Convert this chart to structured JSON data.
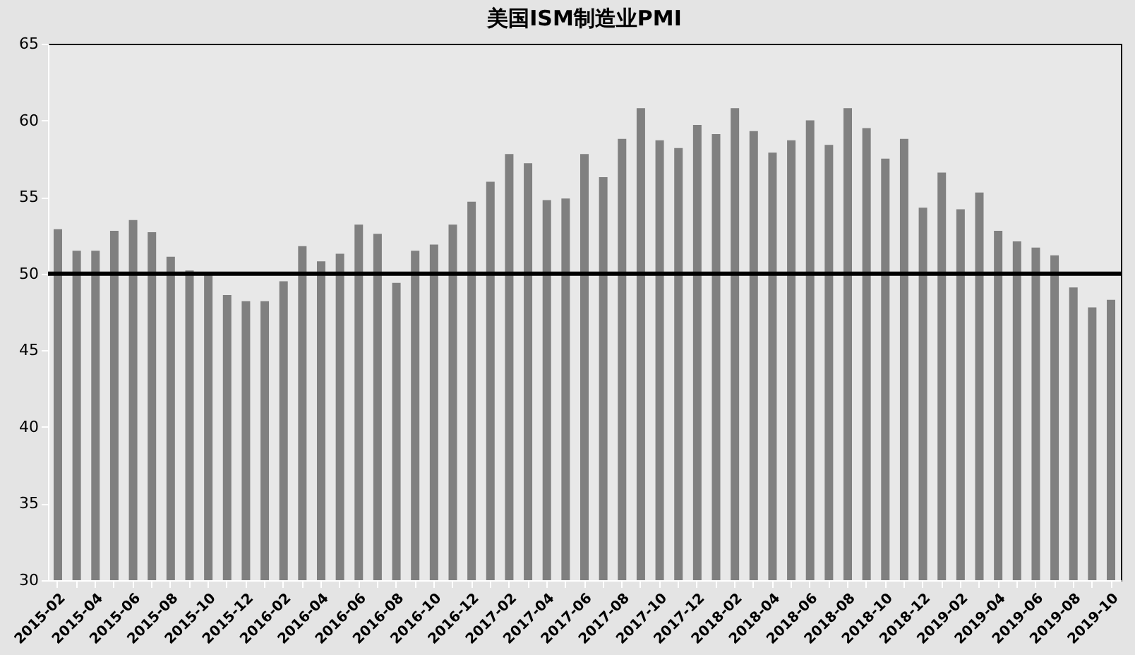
{
  "chart_data": {
    "type": "bar",
    "title": "美国ISM制造业PMI",
    "categories": [
      "2015-02",
      null,
      "2015-04",
      null,
      "2015-06",
      null,
      "2015-08",
      null,
      "2015-10",
      null,
      "2015-12",
      null,
      "2016-02",
      null,
      "2016-04",
      null,
      "2016-06",
      null,
      "2016-08",
      null,
      "2016-10",
      null,
      "2016-12",
      null,
      "2017-02",
      null,
      "2017-04",
      null,
      "2017-06",
      null,
      "2017-08",
      null,
      "2017-10",
      null,
      "2017-12",
      null,
      "2018-02",
      null,
      "2018-04",
      null,
      "2018-06",
      null,
      "2018-08",
      null,
      "2018-10",
      null,
      "2018-12",
      null,
      "2019-02",
      null,
      "2019-04",
      null,
      "2019-06",
      null,
      "2019-08",
      null,
      "2019-10"
    ],
    "values": [
      52.9,
      51.5,
      51.5,
      52.8,
      53.5,
      52.7,
      51.1,
      50.2,
      50.1,
      48.6,
      48.2,
      48.2,
      49.5,
      51.8,
      50.8,
      51.3,
      53.2,
      52.6,
      49.4,
      51.5,
      51.9,
      53.2,
      54.7,
      56.0,
      57.8,
      57.2,
      54.8,
      54.9,
      57.8,
      56.3,
      58.8,
      60.8,
      58.7,
      58.2,
      59.7,
      59.1,
      60.8,
      59.3,
      57.9,
      58.7,
      60.0,
      58.4,
      60.8,
      59.5,
      57.5,
      58.8,
      54.3,
      56.6,
      54.2,
      55.3,
      52.8,
      52.1,
      51.7,
      51.2,
      49.1,
      47.8,
      48.3
    ],
    "color": "#808080",
    "ylim": [
      30,
      65
    ],
    "yticks": [
      30,
      35,
      40,
      45,
      50,
      55,
      60,
      65
    ],
    "ref_lines": [
      {
        "axis": "y",
        "value": 50,
        "color": "#000000"
      }
    ],
    "grid": false
  }
}
